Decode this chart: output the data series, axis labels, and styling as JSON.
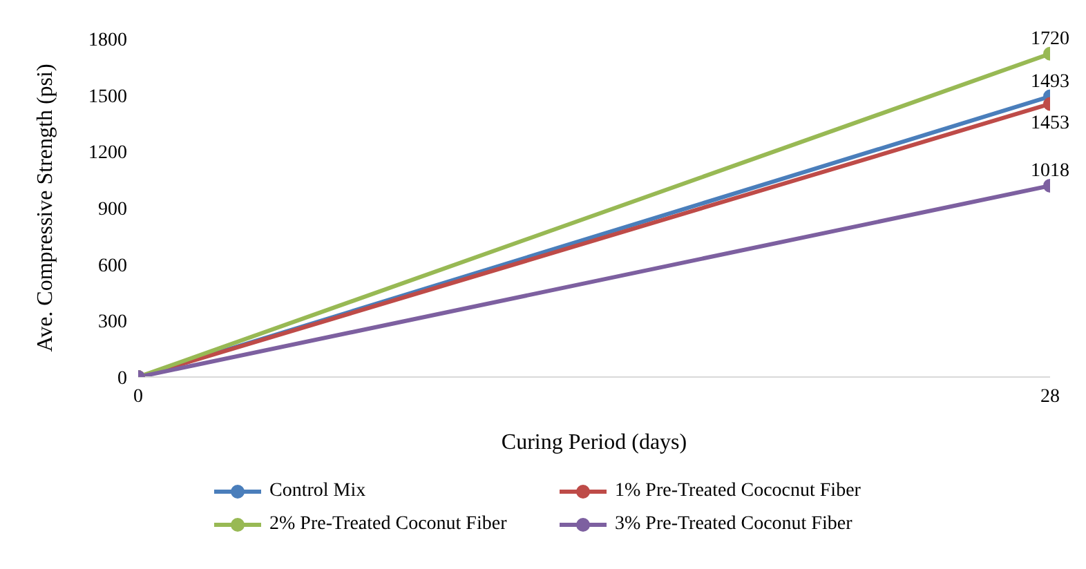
{
  "chart_data": {
    "type": "line",
    "xlabel": "Curing Period (days)",
    "ylabel": "Ave. Compressive Strength (psi)",
    "x": [
      0,
      28
    ],
    "xlim": [
      0,
      28
    ],
    "xticks": [
      0,
      28
    ],
    "ylim": [
      0,
      1800
    ],
    "yticks": [
      0,
      300,
      600,
      900,
      1200,
      1500,
      1800
    ],
    "series": [
      {
        "name": "Control Mix",
        "color": "#4a7ebb",
        "values": [
          0,
          1493
        ],
        "value_labels": [
          null,
          "1493"
        ]
      },
      {
        "name": "1% Pre-Treated Cococnut Fiber",
        "color": "#be4b48",
        "values": [
          0,
          1453
        ],
        "value_labels": [
          null,
          "1453"
        ]
      },
      {
        "name": "2% Pre-Treated Coconut Fiber",
        "color": "#98b954",
        "values": [
          0,
          1720
        ],
        "value_labels": [
          null,
          "1720"
        ]
      },
      {
        "name": "3% Pre-Treated Coconut Fiber",
        "color": "#7d60a0",
        "values": [
          0,
          1018
        ],
        "value_labels": [
          null,
          "1018"
        ]
      }
    ],
    "marker": "circle",
    "line_style": "solid",
    "grid": false,
    "legend": "bottom"
  }
}
